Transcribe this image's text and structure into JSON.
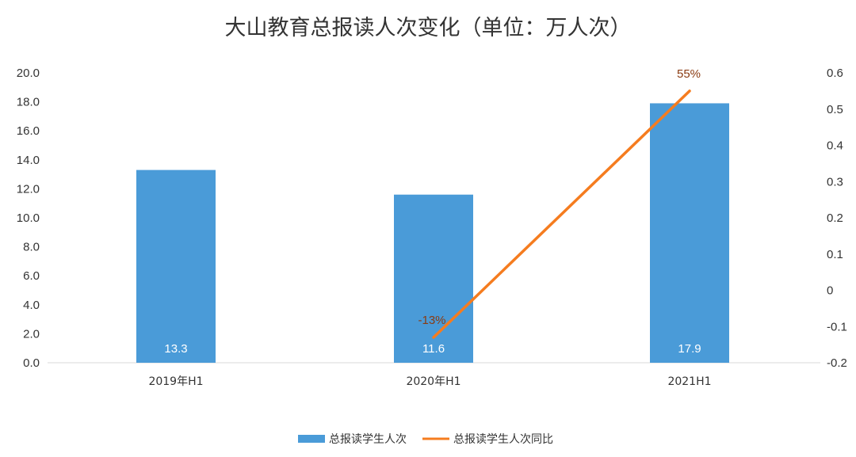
{
  "chart_data": {
    "type": "bar",
    "title": "大山教育总报读人次变化（单位：万人次）",
    "categories": [
      "2019年H1",
      "2020年H1",
      "2021H1"
    ],
    "bar_series": {
      "name": "总报读学生人次",
      "values": [
        13.3,
        11.6,
        17.9
      ],
      "labels": [
        "13.3",
        "11.6",
        "17.9"
      ],
      "color": "#4a9bd8"
    },
    "line_series": {
      "name": "总报读学生人次同比",
      "values": [
        null,
        -0.13,
        0.55
      ],
      "labels": [
        "",
        "-13%",
        "55%"
      ],
      "color": "#f57c1f"
    },
    "y_left": {
      "range": [
        0,
        20
      ],
      "ticks": [
        "0.0",
        "2.0",
        "4.0",
        "6.0",
        "8.0",
        "10.0",
        "12.0",
        "14.0",
        "16.0",
        "18.0",
        "20.0"
      ]
    },
    "y_right": {
      "range": [
        -0.2,
        0.6
      ],
      "ticks": [
        "-0.2",
        "-0.1",
        "0",
        "0.1",
        "0.2",
        "0.3",
        "0.4",
        "0.5",
        "0.6"
      ]
    },
    "grid": false,
    "legend_position": "bottom"
  }
}
